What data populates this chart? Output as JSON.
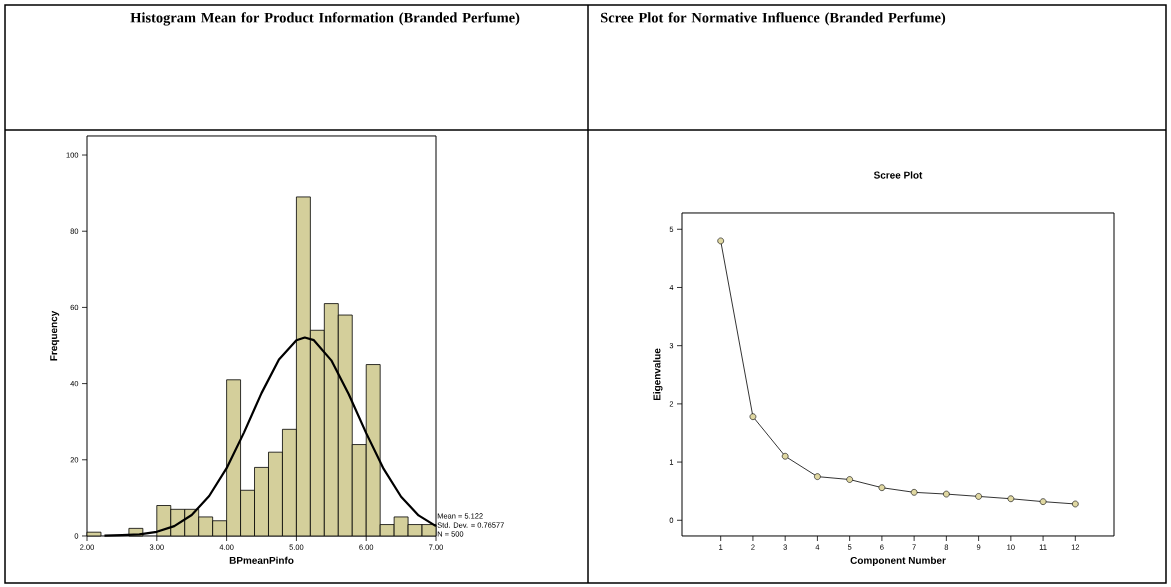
{
  "chart_data": [
    {
      "type": "histogram",
      "title": "Histogram Mean for Product Information (Branded Perfume)",
      "xlabel": "BPmeanPinfo",
      "ylabel": "Frequency",
      "bins": [
        2.0,
        2.2,
        2.4,
        2.6,
        2.8,
        3.0,
        3.2,
        3.4,
        3.6,
        3.8,
        4.0,
        4.2,
        4.4,
        4.6,
        4.8,
        5.0,
        5.2,
        5.4,
        5.6,
        5.8,
        6.0,
        6.2,
        6.4,
        6.6,
        6.8,
        7.0
      ],
      "series": [
        {
          "type": "histogram",
          "color": "#d4cf9b",
          "values": [
            1,
            0,
            0,
            2,
            0,
            8,
            7,
            7,
            5,
            4,
            41,
            12,
            18,
            22,
            28,
            89,
            54,
            61,
            58,
            24,
            45,
            3,
            5,
            3,
            3
          ]
        },
        {
          "type": "line",
          "color": "#000000",
          "x": [
            2.25,
            2.5,
            2.75,
            3.0,
            3.25,
            3.5,
            3.75,
            4.0,
            4.25,
            4.5,
            4.75,
            5.0,
            5.12,
            5.25,
            5.5,
            5.75,
            6.0,
            6.25,
            6.5,
            6.75,
            7.0
          ],
          "values": [
            0.1,
            0.2,
            0.4,
            1.1,
            2.6,
            5.5,
            10.5,
            17.8,
            27.2,
            37.5,
            46.3,
            51.4,
            52.1,
            51.4,
            46.1,
            37.2,
            27.0,
            17.6,
            10.3,
            5.4,
            2.6
          ]
        }
      ],
      "xlim": [
        2,
        7
      ],
      "ylim": [
        0,
        105
      ],
      "xticks": [
        {
          "value": 2,
          "label": "2.00"
        },
        {
          "value": 3,
          "label": "3.00"
        },
        {
          "value": 4,
          "label": "4.00"
        },
        {
          "value": 5,
          "label": "5.00"
        },
        {
          "value": 6,
          "label": "6.00"
        },
        {
          "value": 7,
          "label": "7.00"
        }
      ],
      "yticks": [
        0,
        20,
        40,
        60,
        80,
        100
      ],
      "annotations": [
        "Mean = 5.122",
        "Std. Dev. = 0.76577",
        "N = 500"
      ]
    },
    {
      "type": "line",
      "title": "Scree Plot for Normative Influence (Branded Perfume)",
      "subtitle": "Scree Plot",
      "xlabel": "Component Number",
      "ylabel": "Eigenvalue",
      "x": [
        1,
        2,
        3,
        4,
        5,
        6,
        7,
        8,
        9,
        10,
        11,
        12
      ],
      "series": [
        {
          "color": "#e0d8a2",
          "values": [
            4.8,
            1.78,
            1.1,
            0.75,
            0.7,
            0.56,
            0.48,
            0.45,
            0.41,
            0.37,
            0.32,
            0.28
          ]
        }
      ],
      "marker": "circle",
      "xlim": [
        -0.2,
        13.2
      ],
      "ylim": [
        -0.27,
        5.28
      ],
      "xticks": [
        1,
        2,
        3,
        4,
        5,
        6,
        7,
        8,
        9,
        10,
        11,
        12
      ],
      "yticks": [
        0,
        1,
        2,
        3,
        4,
        5
      ]
    }
  ]
}
